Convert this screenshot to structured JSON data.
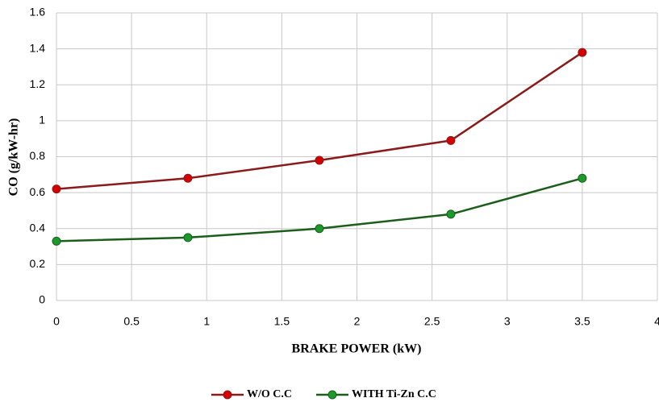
{
  "chart_data": {
    "type": "line",
    "x_label": "BRAKE POWER (kW)",
    "y_label": "CO (g/kW-hr)",
    "x": [
      0,
      0.875,
      1.75,
      2.625,
      3.5
    ],
    "series": [
      {
        "name": "W/O C.C",
        "color": "#8b1a1a",
        "marker_color": "#d40000",
        "values": [
          0.62,
          0.68,
          0.78,
          0.89,
          1.38
        ]
      },
      {
        "name": "WITH Ti-Zn C.C",
        "color": "#1a5e1a",
        "marker_color": "#1a9a2a",
        "values": [
          0.33,
          0.35,
          0.4,
          0.48,
          0.68
        ]
      }
    ],
    "xlim": [
      0,
      4
    ],
    "xticks": [
      0,
      0.5,
      1,
      1.5,
      2,
      2.5,
      3,
      3.5,
      4
    ],
    "ylim": [
      0,
      1.6
    ],
    "yticks": [
      0,
      0.2,
      0.4,
      0.6,
      0.8,
      1,
      1.2,
      1.4,
      1.6
    ],
    "grid": true,
    "legend": "bottom"
  }
}
